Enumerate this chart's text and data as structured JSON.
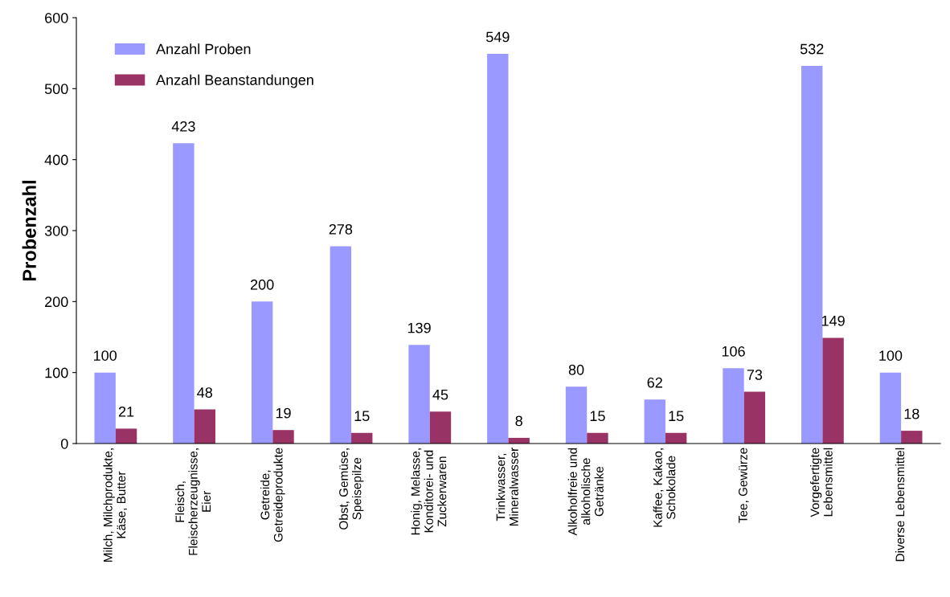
{
  "chart_data": {
    "type": "bar",
    "categories": [
      "Milch, Milchprodukte,\nKäse, Butter",
      "Fleisch,\nFleischerzeugnisse,\nEier",
      "Getreide,\nGetreideprodukte",
      "Obst, Gemüse,\nSpeisepilze",
      "Honig, Melasse,\nKonditorei- und\nZuckerwaren",
      "Trinkwasser,\nMineralwasser",
      "Alkoholfreie und\nalkoholische\nGetränke",
      "Kaffee, Kakao,\nSchokolade",
      "Tee, Gewürze",
      "Vorgefertigte\nLebensmittel",
      "Diverse Lebensmittel"
    ],
    "series": [
      {
        "name": "Anzahl Proben",
        "color": "#9999ff",
        "values": [
          100,
          423,
          200,
          278,
          139,
          549,
          80,
          62,
          106,
          532,
          100
        ]
      },
      {
        "name": "Anzahl Beanstandungen",
        "color": "#993366",
        "values": [
          21,
          48,
          19,
          15,
          45,
          8,
          15,
          15,
          73,
          149,
          18
        ]
      }
    ],
    "ylabel": "Probenzahl",
    "ylim": [
      0,
      600
    ],
    "yticks": [
      0,
      100,
      200,
      300,
      400,
      500,
      600
    ],
    "data_labels": true,
    "grid": false,
    "legend": "top left"
  }
}
